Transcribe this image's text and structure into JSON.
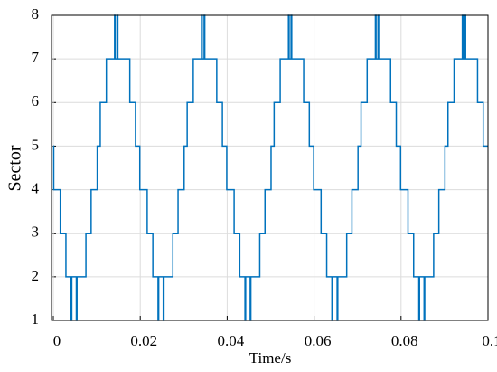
{
  "chart_data": {
    "type": "line",
    "step": "post",
    "xlabel": "Time/s",
    "ylabel": "Sector",
    "xlim": [
      0,
      0.1
    ],
    "ylim": [
      1,
      8
    ],
    "xticks": [
      0,
      0.02,
      0.04,
      0.06,
      0.08,
      0.1
    ],
    "yticks": [
      1,
      2,
      3,
      4,
      5,
      6,
      7,
      8
    ],
    "grid": true,
    "series": [
      {
        "name": "Sector",
        "color": "#0072bd",
        "x": [
          0,
          0.0001,
          0.0016,
          0.0029,
          0.0041,
          0.00425,
          0.0053,
          0.00545,
          0.0075,
          0.0087,
          0.0101,
          0.0108,
          0.0122,
          0.0141,
          0.01425,
          0.0147,
          0.01485,
          0.0176,
          0.0189,
          0.0199,
          0.0216,
          0.0229,
          0.0241,
          0.02425,
          0.0253,
          0.02545,
          0.0275,
          0.0287,
          0.0301,
          0.0308,
          0.0322,
          0.0341,
          0.03425,
          0.0347,
          0.03485,
          0.0376,
          0.0389,
          0.0399,
          0.0416,
          0.0429,
          0.0441,
          0.04425,
          0.0453,
          0.04545,
          0.0475,
          0.0487,
          0.0501,
          0.0508,
          0.0522,
          0.0541,
          0.05425,
          0.0547,
          0.05485,
          0.0576,
          0.0589,
          0.0599,
          0.0616,
          0.0629,
          0.0641,
          0.06425,
          0.0653,
          0.06545,
          0.0675,
          0.0687,
          0.0701,
          0.0708,
          0.0722,
          0.0741,
          0.07425,
          0.0747,
          0.07485,
          0.0776,
          0.0789,
          0.0799,
          0.0816,
          0.0829,
          0.0841,
          0.08425,
          0.0853,
          0.08545,
          0.0875,
          0.0887,
          0.0901,
          0.0908,
          0.0922,
          0.0941,
          0.09425,
          0.0947,
          0.09485,
          0.0976,
          0.0989,
          0.1
        ],
        "values": [
          5,
          4,
          3,
          2,
          1,
          2,
          1,
          2,
          3,
          4,
          5,
          6,
          7,
          8,
          7,
          8,
          7,
          6,
          5,
          4,
          3,
          2,
          1,
          2,
          1,
          2,
          3,
          4,
          5,
          6,
          7,
          8,
          7,
          8,
          7,
          6,
          5,
          4,
          3,
          2,
          1,
          2,
          1,
          2,
          3,
          4,
          5,
          6,
          7,
          8,
          7,
          8,
          7,
          6,
          5,
          4,
          3,
          2,
          1,
          2,
          1,
          2,
          3,
          4,
          5,
          6,
          7,
          8,
          7,
          8,
          7,
          6,
          5,
          4,
          3,
          2,
          1,
          2,
          1,
          2,
          3,
          4,
          5,
          6,
          7,
          8,
          7,
          8,
          7,
          6,
          5,
          5
        ]
      }
    ]
  }
}
